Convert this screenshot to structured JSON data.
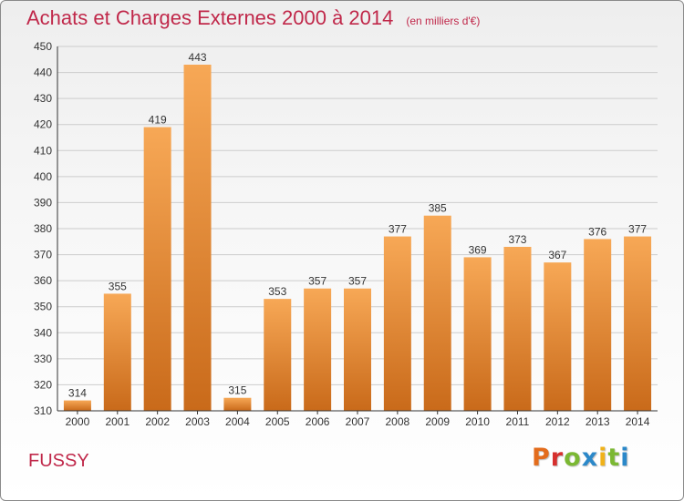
{
  "header": {
    "title": "Achats et Charges Externes 2000 à 2014",
    "unit": "(en milliers d'€)"
  },
  "footer": {
    "commune": "FUSSY",
    "brand": "Proxiti",
    "brand_letter_colors": [
      "#e36c1c",
      "#d6302e",
      "#7bb833",
      "#2b88c9",
      "#f0b21a",
      "#7bb833",
      "#2b88c9"
    ]
  },
  "colors": {
    "title": "#c0284a",
    "bar_light": "#f7a856",
    "bar_dark": "#c96a1a",
    "grid": "#cccccc",
    "axis": "#333333"
  },
  "chart_data": {
    "type": "bar",
    "categories": [
      "2000",
      "2001",
      "2002",
      "2003",
      "2004",
      "2005",
      "2006",
      "2007",
      "2008",
      "2009",
      "2010",
      "2011",
      "2012",
      "2013",
      "2014"
    ],
    "values": [
      314,
      355,
      419,
      443,
      315,
      353,
      357,
      357,
      377,
      385,
      369,
      373,
      367,
      376,
      377
    ],
    "ylim": [
      310,
      450
    ],
    "yticks": [
      310,
      320,
      330,
      340,
      350,
      360,
      370,
      380,
      390,
      400,
      410,
      420,
      430,
      440,
      450
    ],
    "grid": "horizontal",
    "data_labels": true
  }
}
